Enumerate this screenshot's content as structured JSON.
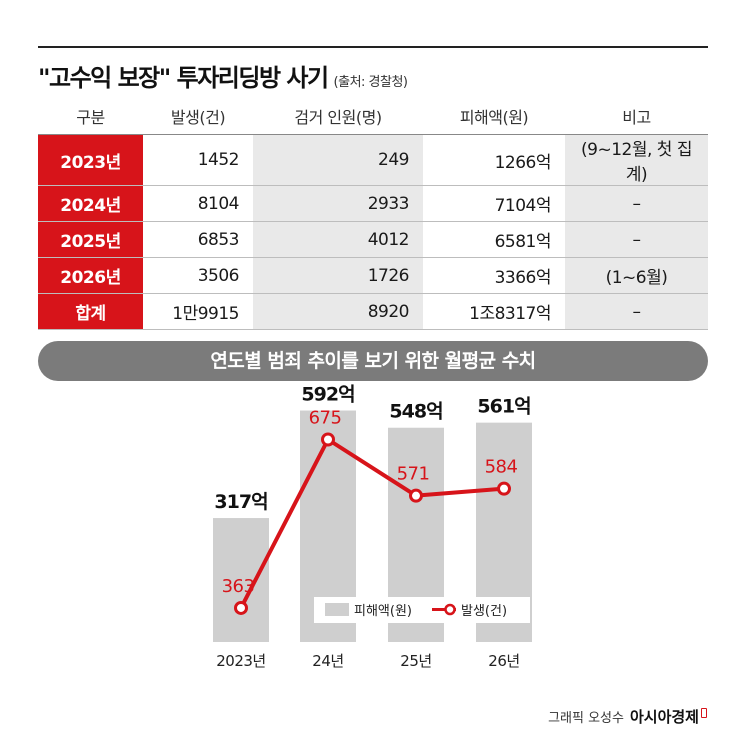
{
  "title": "\"고수익 보장\" 투자리딩방 사기",
  "source": "(출처: 경찰청)",
  "table": {
    "headers": [
      "구분",
      "발생(건)",
      "검거 인원(명)",
      "피해액(원)",
      "비고"
    ],
    "rows": [
      {
        "year": "2023년",
        "cases": "1452",
        "arrests": "249",
        "damage": "1266억",
        "note": "(9~12월, 첫 집계)"
      },
      {
        "year": "2024년",
        "cases": "8104",
        "arrests": "2933",
        "damage": "7104억",
        "note": "–"
      },
      {
        "year": "2025년",
        "cases": "6853",
        "arrests": "4012",
        "damage": "6581억",
        "note": "–"
      },
      {
        "year": "2026년",
        "cases": "3506",
        "arrests": "1726",
        "damage": "3366억",
        "note": "(1~6월)"
      },
      {
        "year": "합계",
        "cases": "1만9915",
        "arrests": "8920",
        "damage": "1조8317억",
        "note": "–"
      }
    ]
  },
  "banner": "연도별 범죄 추이를 보기 위한 월평균 수치",
  "chart_data": {
    "type": "bar",
    "categories": [
      "2023년",
      "24년",
      "25년",
      "26년"
    ],
    "series": [
      {
        "name": "피해액(원)",
        "type": "bar",
        "unit": "억",
        "values": [
          317,
          592,
          548,
          561
        ],
        "labels": [
          "317억",
          "592억",
          "548억",
          "561억"
        ],
        "color": "#cfcfcf"
      },
      {
        "name": "발생(건)",
        "type": "line",
        "values": [
          363,
          675,
          571,
          584
        ],
        "labels": [
          "363",
          "675",
          "571",
          "584"
        ],
        "color": "#d7141a"
      }
    ],
    "legend_position": "bottom-right",
    "grid": false
  },
  "credit": {
    "text": "그래픽 오성수",
    "brand": "아시아경제"
  },
  "colors": {
    "accent": "#d7141a",
    "banner": "#7b7b7b",
    "shade": "#e9e9e9",
    "bar": "#cfcfcf"
  }
}
